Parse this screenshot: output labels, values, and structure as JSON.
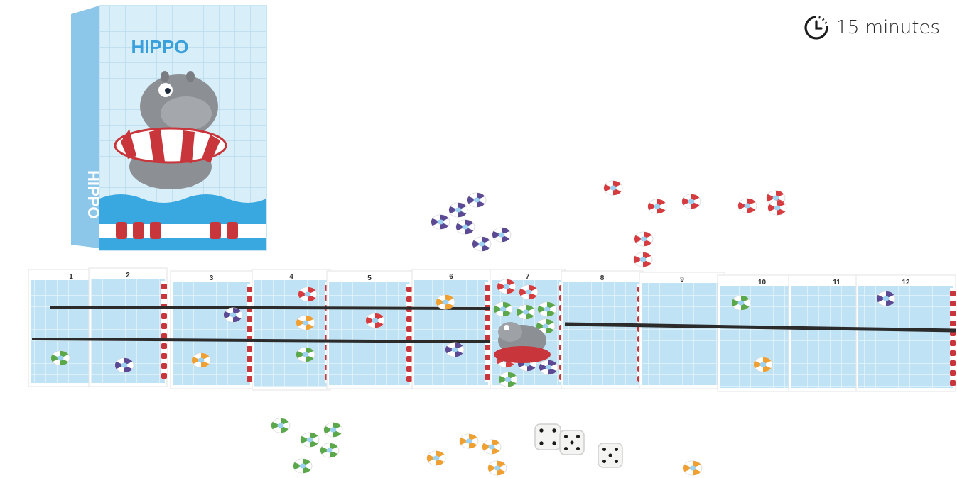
{
  "box": {
    "title": "HIPPO",
    "side_text": "HIPPO"
  },
  "play_time": {
    "text": "15 minutes",
    "icon": "clock-icon"
  },
  "board": {
    "lane_numbers": [
      "1",
      "2",
      "3",
      "4",
      "5",
      "6",
      "7",
      "8",
      "9",
      "10",
      "11",
      "12"
    ]
  },
  "dice": [
    {
      "face": 4
    },
    {
      "face": 5
    },
    {
      "face": 5
    }
  ],
  "colors": {
    "water": "#bfe3f5",
    "water_dark": "#93cdeb",
    "lane_rope_red": "#c8353a",
    "hippo_grey": "#8c9095",
    "token_red": "#d63b3f",
    "token_green": "#5aa84a",
    "token_orange": "#f0a030",
    "token_purple": "#5b4a93"
  }
}
